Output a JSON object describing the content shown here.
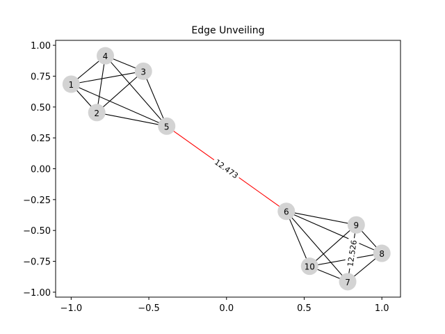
{
  "chart_data": {
    "type": "network",
    "title": "Edge Unveiling",
    "xlim": [
      -1.1,
      1.12
    ],
    "ylim": [
      -1.04,
      1.04
    ],
    "x_ticks": [
      {
        "value": -1.0,
        "label": "−1.0"
      },
      {
        "value": -0.5,
        "label": "−0.5"
      },
      {
        "value": 0.0,
        "label": "0.0"
      },
      {
        "value": 0.5,
        "label": "0.5"
      },
      {
        "value": 1.0,
        "label": "1.0"
      }
    ],
    "y_ticks": [
      {
        "value": 1.0,
        "label": "1.00"
      },
      {
        "value": 0.75,
        "label": "0.75"
      },
      {
        "value": 0.5,
        "label": "0.50"
      },
      {
        "value": 0.25,
        "label": "0.25"
      },
      {
        "value": 0.0,
        "label": "0.00"
      },
      {
        "value": -0.25,
        "label": "−0.25"
      },
      {
        "value": -0.5,
        "label": "−0.50"
      },
      {
        "value": -0.75,
        "label": "−0.75"
      },
      {
        "value": -1.0,
        "label": "−1.00"
      }
    ],
    "node_color": "#d3d3d3",
    "edge_color": "#000000",
    "highlight_color": "#ff0000",
    "nodes": [
      {
        "id": "1",
        "x": -1.0,
        "y": 0.685
      },
      {
        "id": "2",
        "x": -0.835,
        "y": 0.455
      },
      {
        "id": "3",
        "x": -0.535,
        "y": 0.79
      },
      {
        "id": "4",
        "x": -0.78,
        "y": 0.915
      },
      {
        "id": "5",
        "x": -0.385,
        "y": 0.345
      },
      {
        "id": "6",
        "x": 0.385,
        "y": -0.345
      },
      {
        "id": "7",
        "x": 0.78,
        "y": -0.915
      },
      {
        "id": "8",
        "x": 1.0,
        "y": -0.685
      },
      {
        "id": "9",
        "x": 0.835,
        "y": -0.455
      },
      {
        "id": "10",
        "x": 0.535,
        "y": -0.79
      }
    ],
    "edges": [
      {
        "source": "1",
        "target": "2"
      },
      {
        "source": "1",
        "target": "3"
      },
      {
        "source": "1",
        "target": "4"
      },
      {
        "source": "1",
        "target": "5"
      },
      {
        "source": "2",
        "target": "3"
      },
      {
        "source": "2",
        "target": "4"
      },
      {
        "source": "2",
        "target": "5"
      },
      {
        "source": "3",
        "target": "4"
      },
      {
        "source": "3",
        "target": "5"
      },
      {
        "source": "4",
        "target": "5"
      },
      {
        "source": "5",
        "target": "6",
        "highlight": true,
        "label": "12.473"
      },
      {
        "source": "6",
        "target": "7"
      },
      {
        "source": "6",
        "target": "8"
      },
      {
        "source": "6",
        "target": "9"
      },
      {
        "source": "6",
        "target": "10"
      },
      {
        "source": "7",
        "target": "8"
      },
      {
        "source": "7",
        "target": "9",
        "label": "12.526"
      },
      {
        "source": "7",
        "target": "10"
      },
      {
        "source": "8",
        "target": "9"
      },
      {
        "source": "8",
        "target": "10"
      },
      {
        "source": "9",
        "target": "10"
      }
    ]
  }
}
